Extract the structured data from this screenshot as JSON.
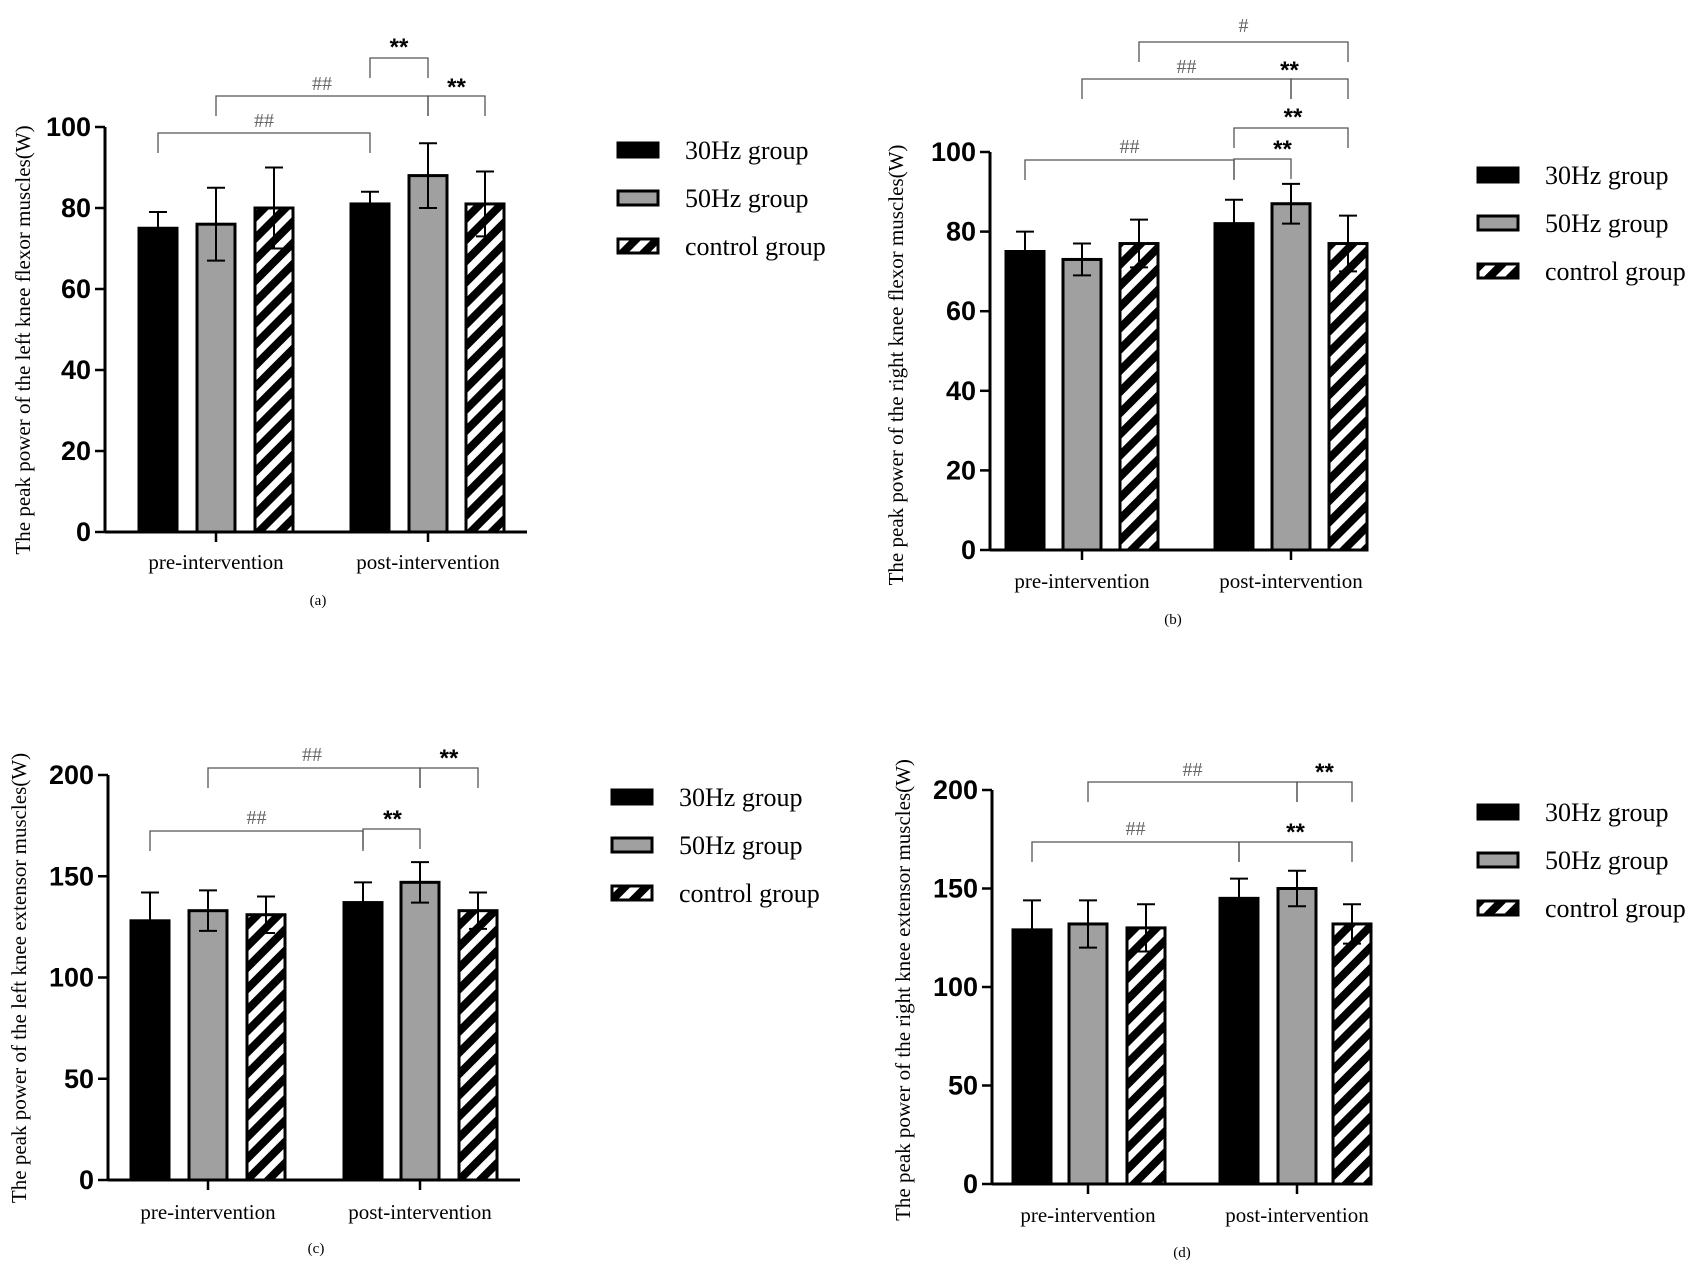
{
  "legend": {
    "labels": [
      "30Hz group",
      "50Hz group",
      "control group"
    ],
    "colors": [
      "#000000",
      "#a0a0a0",
      "hatched"
    ]
  },
  "chart_data": [
    {
      "type": "bar",
      "panel_label": "(a)",
      "ylabel": "The peak power of the left knee flexor  muscles(W)",
      "categories": [
        "pre-intervention",
        "post-intervention"
      ],
      "ylim": [
        0,
        100
      ],
      "yticks": [
        0,
        20,
        40,
        60,
        80,
        100
      ],
      "series": [
        {
          "name": "30Hz group",
          "values": [
            75,
            81
          ],
          "errors": [
            4,
            3
          ]
        },
        {
          "name": "50Hz group",
          "values": [
            76,
            88
          ],
          "errors": [
            9,
            8
          ]
        },
        {
          "name": "control group",
          "values": [
            80,
            81
          ],
          "errors": [
            10,
            8
          ]
        }
      ],
      "significance": [
        {
          "from": [
            0,
            0
          ],
          "to": [
            1,
            0
          ],
          "label": "##"
        },
        {
          "from": [
            0,
            1
          ],
          "to": [
            1,
            1
          ],
          "label": "##"
        },
        {
          "from": [
            1,
            0
          ],
          "to": [
            1,
            1
          ],
          "label": "**"
        },
        {
          "from": [
            1,
            1
          ],
          "to": [
            1,
            2
          ],
          "label": "**"
        }
      ]
    },
    {
      "type": "bar",
      "panel_label": "(b)",
      "ylabel": "The peak power of the right knee flexor  muscles(W)",
      "categories": [
        "pre-intervention",
        "post-intervention"
      ],
      "ylim": [
        0,
        100
      ],
      "yticks": [
        0,
        20,
        40,
        60,
        80,
        100
      ],
      "series": [
        {
          "name": "30Hz group",
          "values": [
            75,
            82
          ],
          "errors": [
            5,
            6
          ]
        },
        {
          "name": "50Hz group",
          "values": [
            73,
            87
          ],
          "errors": [
            4,
            5
          ]
        },
        {
          "name": "control group",
          "values": [
            77,
            77
          ],
          "errors": [
            6,
            7
          ]
        }
      ],
      "significance": [
        {
          "from": [
            0,
            0
          ],
          "to": [
            1,
            0
          ],
          "label": "##"
        },
        {
          "from": [
            1,
            0
          ],
          "to": [
            1,
            1
          ],
          "label": "**"
        },
        {
          "from": [
            1,
            0
          ],
          "to": [
            1,
            2
          ],
          "label": "**"
        },
        {
          "from": [
            0,
            1
          ],
          "to": [
            1,
            1
          ],
          "label": "##"
        },
        {
          "from": [
            1,
            1
          ],
          "to": [
            1,
            2
          ],
          "label": "**"
        },
        {
          "from": [
            0,
            2
          ],
          "to": [
            1,
            2
          ],
          "label": "#"
        }
      ]
    },
    {
      "type": "bar",
      "panel_label": "(c)",
      "ylabel": "The peak power of the left knee extensor  muscles(W)",
      "categories": [
        "pre-intervention",
        "post-intervention"
      ],
      "ylim": [
        0,
        200
      ],
      "yticks": [
        0,
        50,
        100,
        150,
        200
      ],
      "series": [
        {
          "name": "30Hz group",
          "values": [
            128,
            137
          ],
          "errors": [
            14,
            10
          ]
        },
        {
          "name": "50Hz group",
          "values": [
            133,
            147
          ],
          "errors": [
            10,
            10
          ]
        },
        {
          "name": "control group",
          "values": [
            131,
            133
          ],
          "errors": [
            9,
            9
          ]
        }
      ],
      "significance": [
        {
          "from": [
            0,
            0
          ],
          "to": [
            1,
            0
          ],
          "label": "##"
        },
        {
          "from": [
            1,
            0
          ],
          "to": [
            1,
            1
          ],
          "label": "**"
        },
        {
          "from": [
            0,
            1
          ],
          "to": [
            1,
            1
          ],
          "label": "##"
        },
        {
          "from": [
            1,
            1
          ],
          "to": [
            1,
            2
          ],
          "label": "**"
        }
      ]
    },
    {
      "type": "bar",
      "panel_label": "(d)",
      "ylabel": "The peak power of the right knee extensor muscles(W)",
      "categories": [
        "pre-intervention",
        "post-intervention"
      ],
      "ylim": [
        0,
        200
      ],
      "yticks": [
        0,
        50,
        100,
        150,
        200
      ],
      "series": [
        {
          "name": "30Hz group",
          "values": [
            129,
            145
          ],
          "errors": [
            15,
            10
          ]
        },
        {
          "name": "50Hz group",
          "values": [
            132,
            150
          ],
          "errors": [
            12,
            9
          ]
        },
        {
          "name": "control group",
          "values": [
            130,
            132
          ],
          "errors": [
            12,
            10
          ]
        }
      ],
      "significance": [
        {
          "from": [
            0,
            0
          ],
          "to": [
            1,
            0
          ],
          "label": "##"
        },
        {
          "from": [
            1,
            0
          ],
          "to": [
            1,
            2
          ],
          "label": "**"
        },
        {
          "from": [
            0,
            1
          ],
          "to": [
            1,
            1
          ],
          "label": "##"
        },
        {
          "from": [
            1,
            1
          ],
          "to": [
            1,
            2
          ],
          "label": "**"
        }
      ]
    }
  ]
}
